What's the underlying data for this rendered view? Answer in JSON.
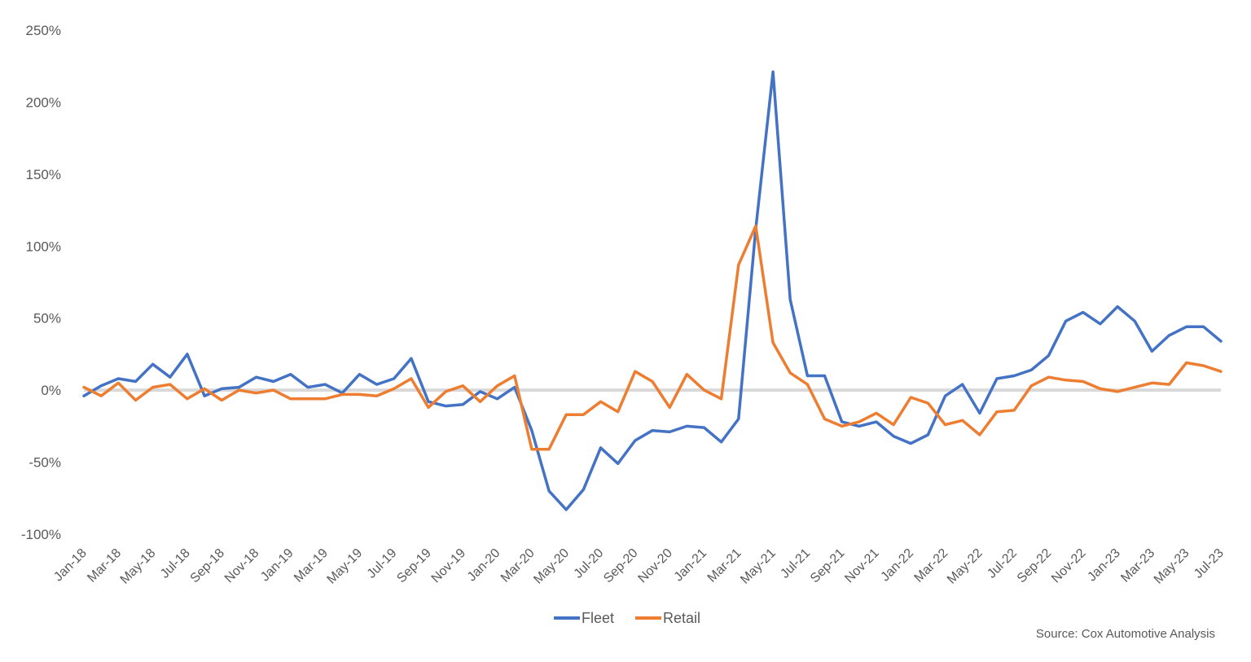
{
  "chart_data": {
    "type": "line",
    "title": "",
    "xlabel": "",
    "ylabel": "",
    "ylim": [
      -100,
      250
    ],
    "yticks": [
      -100,
      -50,
      0,
      50,
      100,
      150,
      200,
      250
    ],
    "ytick_labels": [
      "-100%",
      "-50%",
      "0%",
      "50%",
      "100%",
      "150%",
      "200%",
      "250%"
    ],
    "x": [
      "Jan-18",
      "Feb-18",
      "Mar-18",
      "Apr-18",
      "May-18",
      "Jun-18",
      "Jul-18",
      "Aug-18",
      "Sep-18",
      "Oct-18",
      "Nov-18",
      "Dec-18",
      "Jan-19",
      "Feb-19",
      "Mar-19",
      "Apr-19",
      "May-19",
      "Jun-19",
      "Jul-19",
      "Aug-19",
      "Sep-19",
      "Oct-19",
      "Nov-19",
      "Dec-19",
      "Jan-20",
      "Feb-20",
      "Mar-20",
      "Apr-20",
      "May-20",
      "Jun-20",
      "Jul-20",
      "Aug-20",
      "Sep-20",
      "Oct-20",
      "Nov-20",
      "Dec-20",
      "Jan-21",
      "Feb-21",
      "Mar-21",
      "Apr-21",
      "May-21",
      "Jun-21",
      "Jul-21",
      "Aug-21",
      "Sep-21",
      "Oct-21",
      "Nov-21",
      "Dec-21",
      "Jan-22",
      "Feb-22",
      "Mar-22",
      "Apr-22",
      "May-22",
      "Jun-22",
      "Jul-22",
      "Aug-22",
      "Sep-22",
      "Oct-22",
      "Nov-22",
      "Dec-22",
      "Jan-23",
      "Feb-23",
      "Mar-23",
      "Apr-23",
      "May-23",
      "Jun-23",
      "Jul-23"
    ],
    "xtick_labels": [
      "Jan-18",
      "Mar-18",
      "May-18",
      "Jul-18",
      "Sep-18",
      "Nov-18",
      "Jan-19",
      "Mar-19",
      "May-19",
      "Jul-19",
      "Sep-19",
      "Nov-19",
      "Jan-20",
      "Mar-20",
      "May-20",
      "Jul-20",
      "Sep-20",
      "Nov-20",
      "Jan-21",
      "Mar-21",
      "May-21",
      "Jul-21",
      "Sep-21",
      "Nov-21",
      "Jan-22",
      "Mar-22",
      "May-22",
      "Jul-22",
      "Sep-22",
      "Nov-22",
      "Jan-23",
      "Mar-23",
      "May-23",
      "Jul-23"
    ],
    "zero_line": true,
    "legend_position": "bottom-center",
    "series": [
      {
        "name": "Fleet",
        "color": "#4472C4",
        "values": [
          -4,
          3,
          8,
          6,
          18,
          9,
          25,
          -4,
          1,
          2,
          9,
          6,
          11,
          2,
          4,
          -2,
          11,
          4,
          8,
          22,
          -8,
          -11,
          -10,
          -1,
          -6,
          2,
          -28,
          -70,
          -83,
          -69,
          -40,
          -51,
          -35,
          -28,
          -29,
          -25,
          -26,
          -36,
          -20,
          112,
          221,
          63,
          10,
          10,
          -22,
          -25,
          -22,
          -32,
          -37,
          -31,
          -4,
          4,
          -16,
          8,
          10,
          14,
          24,
          48,
          54,
          46,
          58,
          48,
          27,
          38,
          44,
          44,
          34
        ]
      },
      {
        "name": "Retail",
        "color": "#ED7D31",
        "values": [
          2,
          -4,
          5,
          -7,
          2,
          4,
          -6,
          1,
          -7,
          0,
          -2,
          0,
          -6,
          -6,
          -6,
          -3,
          -3,
          -4,
          1,
          8,
          -12,
          -1,
          3,
          -8,
          3,
          10,
          -41,
          -41,
          -17,
          -17,
          -8,
          -15,
          13,
          6,
          -12,
          11,
          0,
          -6,
          87,
          114,
          33,
          12,
          4,
          -20,
          -25,
          -22,
          -16,
          -24,
          -5,
          -9,
          -24,
          -21,
          -31,
          -15,
          -14,
          3,
          9,
          7,
          6,
          1,
          -1,
          2,
          5,
          4,
          19,
          17,
          13
        ]
      }
    ],
    "source": "Source: Cox Automotive Analysis"
  }
}
